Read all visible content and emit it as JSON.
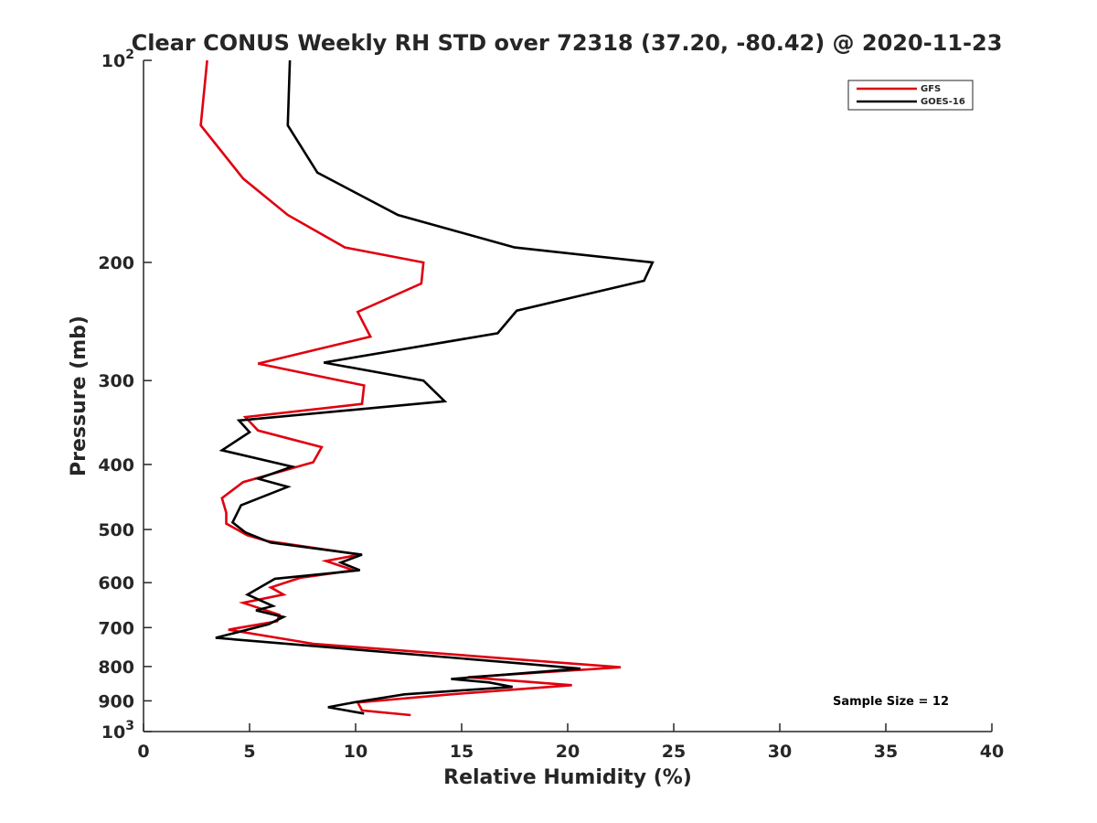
{
  "chart_data": {
    "type": "line",
    "title": "Clear CONUS Weekly RH STD over 72318 (37.20, -80.42) @ 2020-11-23",
    "xlabel": "Relative Humidity (%)",
    "ylabel": "Pressure (mb)",
    "xlim": [
      0,
      40
    ],
    "ylim": [
      100,
      1000
    ],
    "y_scale": "log",
    "y_reversed": true,
    "grid": false,
    "legend_position": "top-right",
    "x_ticks": [
      0,
      5,
      10,
      15,
      20,
      25,
      30,
      35,
      40
    ],
    "x_tick_labels": [
      "0",
      "5",
      "10",
      "15",
      "20",
      "25",
      "30",
      "35",
      "40"
    ],
    "y_ticks": [
      100,
      200,
      300,
      400,
      500,
      600,
      700,
      800,
      900,
      1000
    ],
    "y_tick_labels": [
      {
        "base": "10",
        "exp": "2"
      },
      {
        "base": "200",
        "exp": ""
      },
      {
        "base": "300",
        "exp": ""
      },
      {
        "base": "400",
        "exp": ""
      },
      {
        "base": "500",
        "exp": ""
      },
      {
        "base": "600",
        "exp": ""
      },
      {
        "base": "700",
        "exp": ""
      },
      {
        "base": "800",
        "exp": ""
      },
      {
        "base": "900",
        "exp": ""
      },
      {
        "base": "10",
        "exp": "3"
      }
    ],
    "series": [
      {
        "name": "GFS",
        "color": "#e0000f",
        "points": [
          [
            3.0,
            100
          ],
          [
            2.7,
            125
          ],
          [
            4.7,
            150
          ],
          [
            6.8,
            170
          ],
          [
            9.5,
            190
          ],
          [
            13.2,
            200
          ],
          [
            13.1,
            215
          ],
          [
            10.1,
            237
          ],
          [
            10.7,
            258
          ],
          [
            5.4,
            283
          ],
          [
            10.4,
            305
          ],
          [
            10.3,
            325
          ],
          [
            4.8,
            340
          ],
          [
            5.4,
            356
          ],
          [
            8.4,
            377
          ],
          [
            8.0,
            397
          ],
          [
            4.7,
            425
          ],
          [
            3.7,
            449
          ],
          [
            3.9,
            472
          ],
          [
            3.9,
            490
          ],
          [
            4.9,
            510
          ],
          [
            5.8,
            520
          ],
          [
            10.2,
            545
          ],
          [
            8.6,
            557
          ],
          [
            9.9,
            575
          ],
          [
            7.4,
            590
          ],
          [
            6.0,
            610
          ],
          [
            6.6,
            625
          ],
          [
            4.7,
            643
          ],
          [
            6.4,
            670
          ],
          [
            6.3,
            685
          ],
          [
            4.0,
            705
          ],
          [
            8.0,
            740
          ],
          [
            22.5,
            802
          ],
          [
            15.3,
            830
          ],
          [
            20.2,
            853
          ],
          [
            14.5,
            880
          ],
          [
            10.1,
            905
          ],
          [
            10.3,
            930
          ],
          [
            12.6,
            945
          ]
        ]
      },
      {
        "name": "GOES-16",
        "color": "#000000",
        "points": [
          [
            6.9,
            100
          ],
          [
            6.8,
            125
          ],
          [
            8.2,
            147
          ],
          [
            12.0,
            170
          ],
          [
            17.5,
            190
          ],
          [
            24.0,
            200
          ],
          [
            23.6,
            213
          ],
          [
            17.6,
            236
          ],
          [
            16.7,
            255
          ],
          [
            8.5,
            282
          ],
          [
            13.2,
            300
          ],
          [
            14.2,
            322
          ],
          [
            4.5,
            344
          ],
          [
            5.0,
            358
          ],
          [
            3.7,
            381
          ],
          [
            7.0,
            403
          ],
          [
            5.4,
            420
          ],
          [
            6.8,
            432
          ],
          [
            4.6,
            460
          ],
          [
            4.2,
            488
          ],
          [
            4.8,
            505
          ],
          [
            6.0,
            523
          ],
          [
            10.3,
            545
          ],
          [
            9.3,
            560
          ],
          [
            10.2,
            575
          ],
          [
            6.2,
            592
          ],
          [
            4.9,
            625
          ],
          [
            6.1,
            650
          ],
          [
            5.3,
            660
          ],
          [
            6.6,
            675
          ],
          [
            5.9,
            692
          ],
          [
            3.4,
            725
          ],
          [
            17.5,
            790
          ],
          [
            20.6,
            806
          ],
          [
            14.5,
            835
          ],
          [
            16.3,
            845
          ],
          [
            17.4,
            858
          ],
          [
            12.3,
            880
          ],
          [
            9.9,
            905
          ],
          [
            8.7,
            920
          ],
          [
            10.4,
            940
          ]
        ]
      }
    ],
    "annotation": "Sample Size = 12"
  }
}
